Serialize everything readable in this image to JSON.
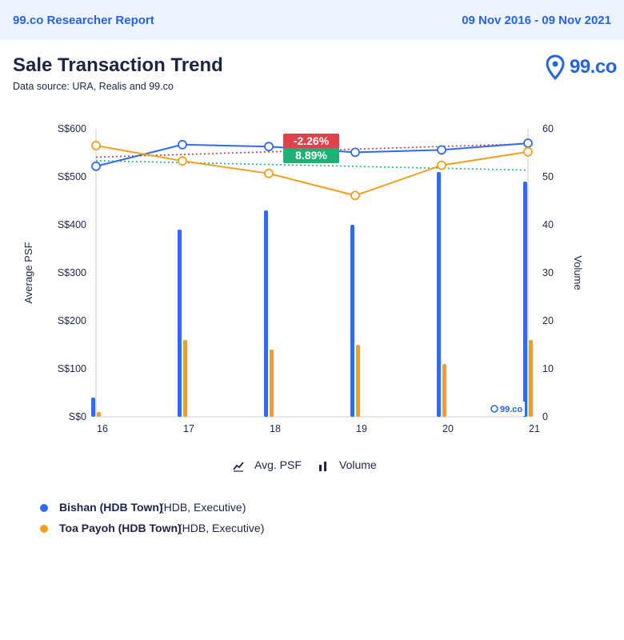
{
  "header": {
    "report_title": "99.co Researcher Report",
    "date_range": "09 Nov 2016 - 09 Nov 2021"
  },
  "page": {
    "title": "Sale Transaction Trend",
    "source": "Data source: URA, Realis and 99.co",
    "logo_text": "99.co"
  },
  "chart_data": {
    "type": "bar+line",
    "categories": [
      "16",
      "17",
      "18",
      "19",
      "20",
      "21"
    ],
    "y_left": {
      "label": "Average PSF",
      "range": [
        0,
        600
      ],
      "ticks": [
        "S$0",
        "S$100",
        "S$200",
        "S$300",
        "S$400",
        "S$500",
        "S$600"
      ]
    },
    "y_right": {
      "label": "Volume",
      "range": [
        0,
        60
      ],
      "ticks": [
        "0",
        "10",
        "20",
        "30",
        "40",
        "50",
        "60"
      ]
    },
    "series": [
      {
        "name": "Bishan (HDB Town)",
        "desc": "(HDB, Executive)",
        "color": "#2f6bf0",
        "avg_psf": [
          522,
          567,
          563,
          551,
          556,
          570
        ],
        "volume": [
          4,
          39,
          43,
          40,
          51,
          49
        ],
        "trend_color": "#c23b3b",
        "trend_change": "-2.26%",
        "trend_change_color": "#e0414a"
      },
      {
        "name": "Toa Payoh (HDB Town)",
        "desc": "(HDB, Executive)",
        "color": "#f29f1f",
        "avg_psf": [
          565,
          533,
          507,
          461,
          524,
          552
        ],
        "volume": [
          1,
          16,
          14,
          15,
          11,
          16
        ],
        "trend_color": "#1db176",
        "trend_change": "8.89%",
        "trend_change_color": "#1db176"
      }
    ],
    "legend": {
      "avg_psf": "Avg. PSF",
      "volume": "Volume"
    },
    "watermark": "99.co"
  }
}
